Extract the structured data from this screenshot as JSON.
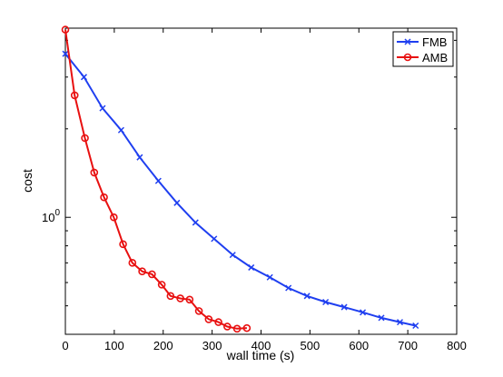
{
  "chart_data": {
    "type": "line",
    "title": "",
    "xlabel": "wall time (s)",
    "ylabel": "cost",
    "xlim": [
      0,
      800
    ],
    "ylim": [
      0.4,
      4.4
    ],
    "yscale": "log",
    "grid": false,
    "legend_position": "top-right",
    "x_ticks": [
      "0",
      "100",
      "200",
      "300",
      "400",
      "500",
      "600",
      "700",
      "800"
    ],
    "y_tick": {
      "base": "10",
      "exponent": "0"
    },
    "series": [
      {
        "name": "FMB",
        "color": "#1f3ff0",
        "marker": "x",
        "points": [
          [
            0,
            3.6
          ],
          [
            38,
            3.0
          ],
          [
            76,
            2.35
          ],
          [
            114,
            1.98
          ],
          [
            152,
            1.6
          ],
          [
            190,
            1.33
          ],
          [
            228,
            1.12
          ],
          [
            266,
            0.96
          ],
          [
            304,
            0.845
          ],
          [
            342,
            0.745
          ],
          [
            380,
            0.675
          ],
          [
            418,
            0.625
          ],
          [
            456,
            0.575
          ],
          [
            494,
            0.54
          ],
          [
            532,
            0.515
          ],
          [
            570,
            0.495
          ],
          [
            608,
            0.475
          ],
          [
            646,
            0.455
          ],
          [
            684,
            0.44
          ],
          [
            716,
            0.428
          ]
        ]
      },
      {
        "name": "AMB",
        "color": "#e81010",
        "marker": "o",
        "points": [
          [
            0,
            4.35
          ],
          [
            19,
            2.6
          ],
          [
            40,
            1.86
          ],
          [
            59,
            1.42
          ],
          [
            79,
            1.17
          ],
          [
            99,
            1.0
          ],
          [
            118,
            0.81
          ],
          [
            137,
            0.7
          ],
          [
            157,
            0.655
          ],
          [
            177,
            0.64
          ],
          [
            197,
            0.59
          ],
          [
            215,
            0.54
          ],
          [
            235,
            0.53
          ],
          [
            254,
            0.525
          ],
          [
            273,
            0.48
          ],
          [
            293,
            0.45
          ],
          [
            313,
            0.44
          ],
          [
            331,
            0.425
          ],
          [
            351,
            0.418
          ],
          [
            371,
            0.42
          ]
        ]
      }
    ]
  }
}
